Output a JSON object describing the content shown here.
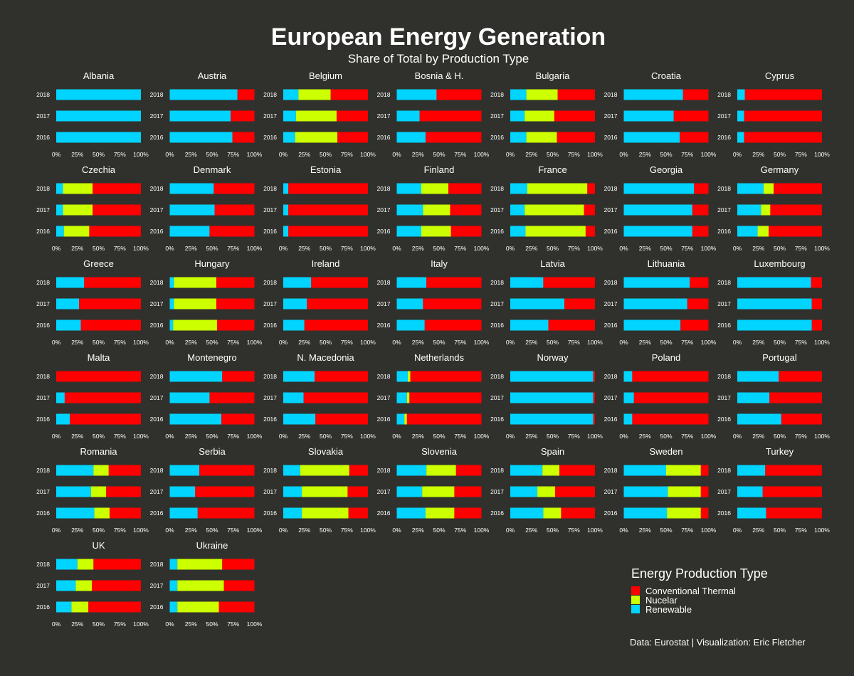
{
  "title": "European Energy Generation",
  "subtitle": "Share of Total by Production Type",
  "caption": "Data: Eurostat | Visualization: Eric Fletcher",
  "legend": {
    "title": "Energy Production Type",
    "items": [
      {
        "label": "Conventional Thermal",
        "color": "#ff0000"
      },
      {
        "label": "Nucelar",
        "color": "#ccff00"
      },
      {
        "label": "Renewable",
        "color": "#00d4ff"
      }
    ]
  },
  "chart_data": {
    "type": "bar",
    "orientation": "horizontal",
    "stacked": true,
    "xlim": [
      0,
      100
    ],
    "x_ticks": [
      "0%",
      "25%",
      "50%",
      "75%",
      "100%"
    ],
    "years": [
      "2018",
      "2017",
      "2016"
    ],
    "series_order": [
      "Renewable",
      "Nucelar",
      "Conventional Thermal"
    ],
    "colors": {
      "Renewable": "#00d4ff",
      "Nucelar": "#ccff00",
      "Conventional Thermal": "#ff0000"
    },
    "panels": [
      {
        "country": "Albania",
        "values": {
          "2018": [
            100,
            0,
            0
          ],
          "2017": [
            100,
            0,
            0
          ],
          "2016": [
            100,
            0,
            0
          ]
        }
      },
      {
        "country": "Austria",
        "values": {
          "2018": [
            80,
            0,
            20
          ],
          "2017": [
            72,
            0,
            28
          ],
          "2016": [
            74,
            0,
            26
          ]
        }
      },
      {
        "country": "Belgium",
        "values": {
          "2018": [
            18,
            38,
            44
          ],
          "2017": [
            15,
            48,
            37
          ],
          "2016": [
            14,
            50,
            36
          ]
        }
      },
      {
        "country": "Bosnia & H.",
        "values": {
          "2018": [
            47,
            0,
            53
          ],
          "2017": [
            27,
            0,
            73
          ],
          "2016": [
            34,
            0,
            66
          ]
        }
      },
      {
        "country": "Bulgaria",
        "values": {
          "2018": [
            19,
            37,
            44
          ],
          "2017": [
            17,
            35,
            48
          ],
          "2016": [
            19,
            36,
            45
          ]
        }
      },
      {
        "country": "Croatia",
        "values": {
          "2018": [
            70,
            0,
            30
          ],
          "2017": [
            59,
            0,
            41
          ],
          "2016": [
            66,
            0,
            34
          ]
        }
      },
      {
        "country": "Cyprus",
        "values": {
          "2018": [
            9,
            0,
            91
          ],
          "2017": [
            8,
            0,
            92
          ],
          "2016": [
            8,
            0,
            92
          ]
        }
      },
      {
        "country": "Czechia",
        "values": {
          "2018": [
            8,
            35,
            57
          ],
          "2017": [
            8,
            35,
            57
          ],
          "2016": [
            9,
            30,
            61
          ]
        }
      },
      {
        "country": "Denmark",
        "values": {
          "2018": [
            52,
            0,
            48
          ],
          "2017": [
            53,
            0,
            47
          ],
          "2016": [
            47,
            0,
            53
          ]
        }
      },
      {
        "country": "Estonia",
        "values": {
          "2018": [
            6,
            0,
            94
          ],
          "2017": [
            6,
            0,
            94
          ],
          "2016": [
            6,
            0,
            94
          ]
        }
      },
      {
        "country": "Finland",
        "values": {
          "2018": [
            29,
            32,
            39
          ],
          "2017": [
            31,
            32,
            37
          ],
          "2016": [
            29,
            35,
            36
          ]
        }
      },
      {
        "country": "France",
        "values": {
          "2018": [
            20,
            71,
            9
          ],
          "2017": [
            17,
            70,
            13
          ],
          "2016": [
            18,
            71,
            11
          ]
        }
      },
      {
        "country": "Georgia",
        "values": {
          "2018": [
            83,
            0,
            17
          ],
          "2017": [
            81,
            0,
            19
          ],
          "2016": [
            81,
            0,
            19
          ]
        }
      },
      {
        "country": "Germany",
        "values": {
          "2018": [
            31,
            12,
            57
          ],
          "2017": [
            28,
            11,
            61
          ],
          "2016": [
            24,
            13,
            63
          ]
        }
      },
      {
        "country": "Greece",
        "values": {
          "2018": [
            33,
            0,
            67
          ],
          "2017": [
            27,
            0,
            73
          ],
          "2016": [
            29,
            0,
            71
          ]
        }
      },
      {
        "country": "Hungary",
        "values": {
          "2018": [
            5,
            50,
            45
          ],
          "2017": [
            5,
            50,
            45
          ],
          "2016": [
            4,
            52,
            44
          ]
        }
      },
      {
        "country": "Ireland",
        "values": {
          "2018": [
            33,
            0,
            67
          ],
          "2017": [
            28,
            0,
            72
          ],
          "2016": [
            25,
            0,
            75
          ]
        }
      },
      {
        "country": "Italy",
        "values": {
          "2018": [
            35,
            0,
            65
          ],
          "2017": [
            31,
            0,
            69
          ],
          "2016": [
            33,
            0,
            67
          ]
        }
      },
      {
        "country": "Latvia",
        "values": {
          "2018": [
            39,
            0,
            61
          ],
          "2017": [
            64,
            0,
            36
          ],
          "2016": [
            45,
            0,
            55
          ]
        }
      },
      {
        "country": "Lithuania",
        "values": {
          "2018": [
            78,
            0,
            22
          ],
          "2017": [
            75,
            0,
            25
          ],
          "2016": [
            67,
            0,
            33
          ]
        }
      },
      {
        "country": "Luxembourg",
        "values": {
          "2018": [
            87,
            0,
            13
          ],
          "2017": [
            88,
            0,
            12
          ],
          "2016": [
            88,
            0,
            12
          ]
        }
      },
      {
        "country": "Malta",
        "values": {
          "2018": [
            0,
            0,
            100
          ],
          "2017": [
            10,
            0,
            90
          ],
          "2016": [
            16,
            0,
            84
          ]
        }
      },
      {
        "country": "Montenegro",
        "values": {
          "2018": [
            62,
            0,
            38
          ],
          "2017": [
            47,
            0,
            53
          ],
          "2016": [
            61,
            0,
            39
          ]
        }
      },
      {
        "country": "N. Macedonia",
        "values": {
          "2018": [
            37,
            0,
            63
          ],
          "2017": [
            24,
            0,
            76
          ],
          "2016": [
            38,
            0,
            62
          ]
        }
      },
      {
        "country": "Netherlands",
        "values": {
          "2018": [
            13,
            3,
            84
          ],
          "2017": [
            12,
            3,
            85
          ],
          "2016": [
            9,
            3,
            88
          ]
        }
      },
      {
        "country": "Norway",
        "values": {
          "2018": [
            98,
            0,
            2
          ],
          "2017": [
            98,
            0,
            2
          ],
          "2016": [
            98,
            0,
            2
          ]
        }
      },
      {
        "country": "Poland",
        "values": {
          "2018": [
            10,
            0,
            90
          ],
          "2017": [
            12,
            0,
            88
          ],
          "2016": [
            10,
            0,
            90
          ]
        }
      },
      {
        "country": "Portugal",
        "values": {
          "2018": [
            49,
            0,
            51
          ],
          "2017": [
            38,
            0,
            62
          ],
          "2016": [
            52,
            0,
            48
          ]
        }
      },
      {
        "country": "Romania",
        "values": {
          "2018": [
            44,
            18,
            38
          ],
          "2017": [
            41,
            18,
            41
          ],
          "2016": [
            45,
            18,
            37
          ]
        }
      },
      {
        "country": "Serbia",
        "values": {
          "2018": [
            35,
            0,
            65
          ],
          "2017": [
            30,
            0,
            70
          ],
          "2016": [
            33,
            0,
            67
          ]
        }
      },
      {
        "country": "Slovakia",
        "values": {
          "2018": [
            20,
            58,
            22
          ],
          "2017": [
            22,
            54,
            24
          ],
          "2016": [
            22,
            55,
            23
          ]
        }
      },
      {
        "country": "Slovenia",
        "values": {
          "2018": [
            35,
            35,
            30
          ],
          "2017": [
            30,
            38,
            32
          ],
          "2016": [
            34,
            34,
            32
          ]
        }
      },
      {
        "country": "Spain",
        "values": {
          "2018": [
            38,
            20,
            42
          ],
          "2017": [
            32,
            21,
            47
          ],
          "2016": [
            39,
            21,
            40
          ]
        }
      },
      {
        "country": "Sweden",
        "values": {
          "2018": [
            50,
            41,
            9
          ],
          "2017": [
            52,
            39,
            9
          ],
          "2016": [
            51,
            40,
            9
          ]
        }
      },
      {
        "country": "Turkey",
        "values": {
          "2018": [
            33,
            0,
            67
          ],
          "2017": [
            30,
            0,
            70
          ],
          "2016": [
            34,
            0,
            66
          ]
        }
      },
      {
        "country": "UK",
        "values": {
          "2018": [
            25,
            19,
            56
          ],
          "2017": [
            23,
            19,
            58
          ],
          "2016": [
            18,
            20,
            62
          ]
        }
      },
      {
        "country": "Ukraine",
        "values": {
          "2018": [
            9,
            53,
            38
          ],
          "2017": [
            9,
            55,
            36
          ],
          "2016": [
            9,
            49,
            42
          ]
        }
      }
    ]
  }
}
